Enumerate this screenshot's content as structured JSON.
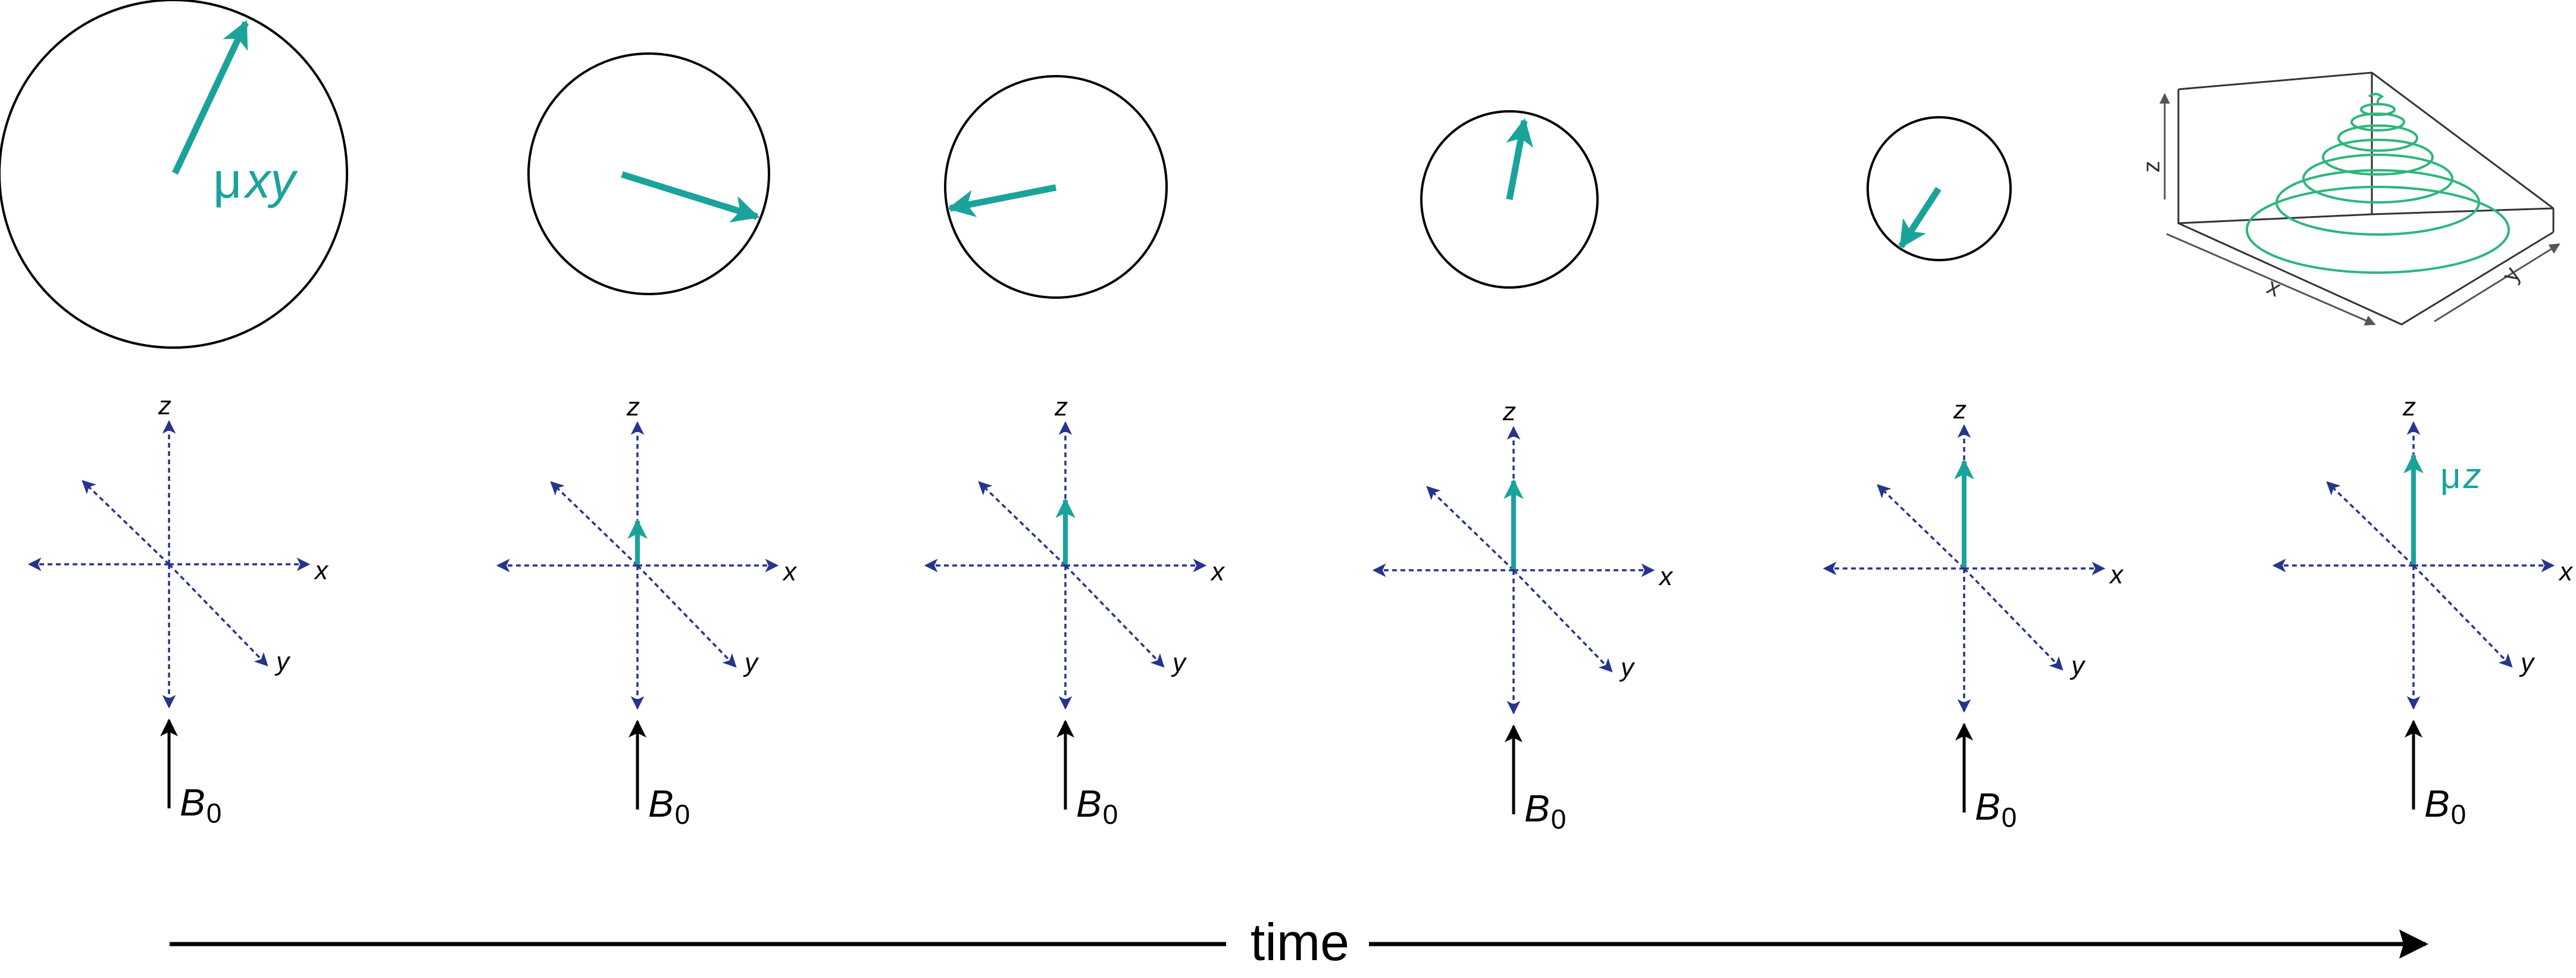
{
  "labels": {
    "mu": "μ",
    "xy": "xy",
    "z": "z",
    "x": "x",
    "y": "y",
    "B": "B",
    "sub0": "0",
    "time": "time"
  },
  "plot3d": {
    "axis_x": "x",
    "axis_y": "y",
    "axis_z": "z"
  },
  "colors": {
    "teal": "#1aa39a",
    "spiral_green": "#2db67c",
    "navy": "#27348b",
    "black": "#000000",
    "plot_gray": "#555555"
  }
}
